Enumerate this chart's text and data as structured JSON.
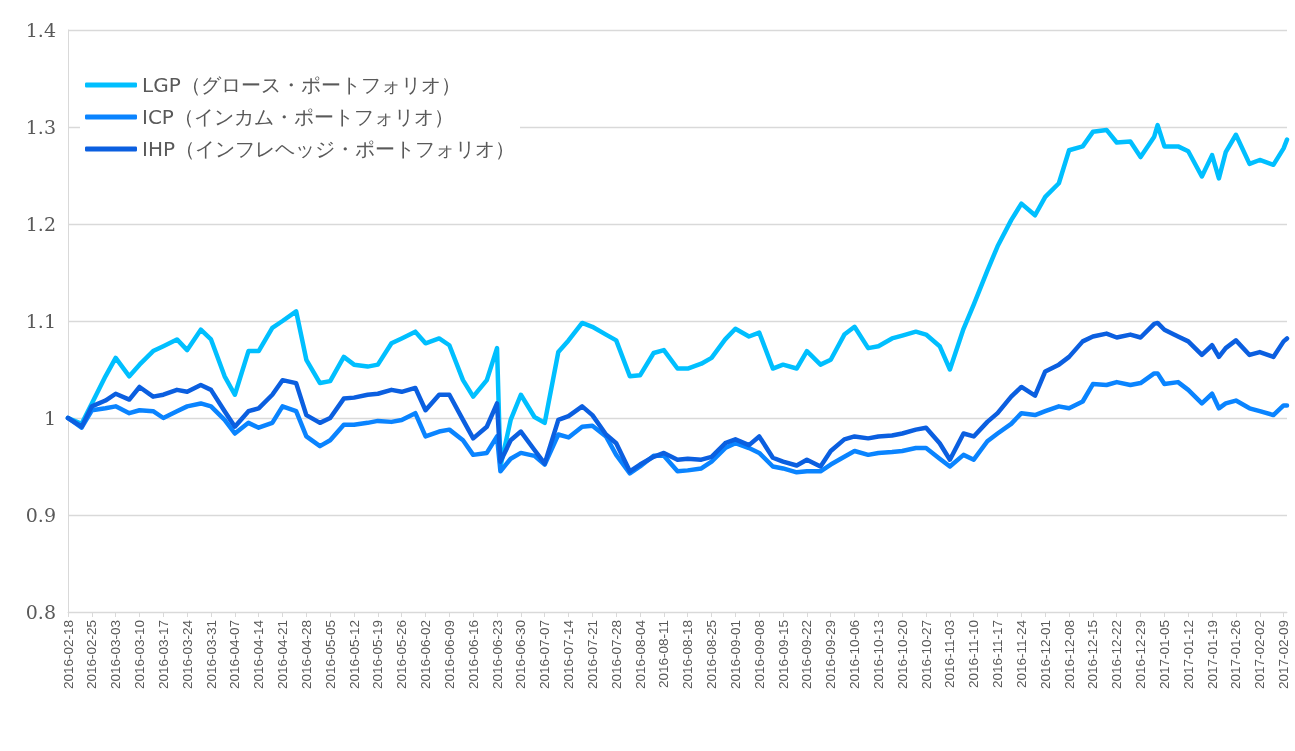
{
  "chart_data": {
    "type": "line",
    "x": [
      "2016-02-18",
      "2016-02-22",
      "2016-02-25",
      "2016-02-29",
      "2016-03-03",
      "2016-03-07",
      "2016-03-10",
      "2016-03-14",
      "2016-03-17",
      "2016-03-21",
      "2016-03-24",
      "2016-03-28",
      "2016-03-31",
      "2016-04-04",
      "2016-04-07",
      "2016-04-11",
      "2016-04-14",
      "2016-04-18",
      "2016-04-21",
      "2016-04-25",
      "2016-04-28",
      "2016-05-02",
      "2016-05-05",
      "2016-05-09",
      "2016-05-12",
      "2016-05-16",
      "2016-05-19",
      "2016-05-23",
      "2016-05-26",
      "2016-05-30",
      "2016-06-02",
      "2016-06-06",
      "2016-06-09",
      "2016-06-13",
      "2016-06-16",
      "2016-06-20",
      "2016-06-23",
      "2016-06-24",
      "2016-06-27",
      "2016-06-30",
      "2016-07-04",
      "2016-07-07",
      "2016-07-11",
      "2016-07-14",
      "2016-07-18",
      "2016-07-21",
      "2016-07-25",
      "2016-07-28",
      "2016-08-01",
      "2016-08-04",
      "2016-08-08",
      "2016-08-11",
      "2016-08-15",
      "2016-08-18",
      "2016-08-22",
      "2016-08-25",
      "2016-08-29",
      "2016-09-01",
      "2016-09-05",
      "2016-09-08",
      "2016-09-12",
      "2016-09-15",
      "2016-09-19",
      "2016-09-22",
      "2016-09-26",
      "2016-09-29",
      "2016-10-03",
      "2016-10-06",
      "2016-10-10",
      "2016-10-13",
      "2016-10-17",
      "2016-10-20",
      "2016-10-24",
      "2016-10-27",
      "2016-10-31",
      "2016-11-03",
      "2016-11-07",
      "2016-11-10",
      "2016-11-14",
      "2016-11-17",
      "2016-11-21",
      "2016-11-24",
      "2016-11-28",
      "2016-12-01",
      "2016-12-05",
      "2016-12-08",
      "2016-12-12",
      "2016-12-15",
      "2016-12-19",
      "2016-12-22",
      "2016-12-26",
      "2016-12-29",
      "2017-01-02",
      "2017-01-03",
      "2017-01-05",
      "2017-01-09",
      "2017-01-12",
      "2017-01-16",
      "2017-01-19",
      "2017-01-21",
      "2017-01-23",
      "2017-01-26",
      "2017-01-30",
      "2017-02-02",
      "2017-02-06",
      "2017-02-09",
      "2017-02-10"
    ],
    "series": [
      {
        "name": "LGP（グロース・ポートフォリオ）",
        "color": "#00bfff",
        "values": [
          1.0,
          0.994,
          1.015,
          1.043,
          1.062,
          1.043,
          1.055,
          1.069,
          1.074,
          1.081,
          1.07,
          1.091,
          1.081,
          1.043,
          1.024,
          1.069,
          1.069,
          1.093,
          1.1,
          1.11,
          1.06,
          1.036,
          1.038,
          1.063,
          1.055,
          1.053,
          1.055,
          1.077,
          1.082,
          1.089,
          1.077,
          1.082,
          1.075,
          1.039,
          1.022,
          1.039,
          1.072,
          0.95,
          0.998,
          1.024,
          1.001,
          0.995,
          1.068,
          1.08,
          1.098,
          1.094,
          1.086,
          1.08,
          1.043,
          1.044,
          1.067,
          1.07,
          1.051,
          1.051,
          1.056,
          1.062,
          1.081,
          1.092,
          1.084,
          1.088,
          1.051,
          1.055,
          1.051,
          1.069,
          1.055,
          1.06,
          1.086,
          1.094,
          1.072,
          1.074,
          1.082,
          1.085,
          1.089,
          1.086,
          1.074,
          1.05,
          1.092,
          1.117,
          1.152,
          1.177,
          1.204,
          1.221,
          1.209,
          1.228,
          1.242,
          1.276,
          1.28,
          1.295,
          1.297,
          1.284,
          1.285,
          1.269,
          1.29,
          1.302,
          1.28,
          1.28,
          1.275,
          1.249,
          1.271,
          1.247,
          1.274,
          1.292,
          1.262,
          1.266,
          1.261,
          1.278,
          1.287
        ]
      },
      {
        "name": "ICP（インカム・ポートフォリオ）",
        "color": "#0a84ff",
        "values": [
          1.0,
          0.99,
          1.008,
          1.01,
          1.012,
          1.005,
          1.008,
          1.007,
          1.0,
          1.007,
          1.012,
          1.015,
          1.012,
          0.998,
          0.984,
          0.995,
          0.99,
          0.995,
          1.012,
          1.007,
          0.981,
          0.971,
          0.977,
          0.993,
          0.993,
          0.995,
          0.997,
          0.996,
          0.998,
          1.005,
          0.981,
          0.986,
          0.988,
          0.977,
          0.962,
          0.964,
          0.981,
          0.945,
          0.958,
          0.964,
          0.961,
          0.952,
          0.983,
          0.98,
          0.991,
          0.992,
          0.981,
          0.962,
          0.943,
          0.95,
          0.961,
          0.961,
          0.945,
          0.946,
          0.948,
          0.955,
          0.969,
          0.974,
          0.969,
          0.964,
          0.95,
          0.948,
          0.944,
          0.945,
          0.945,
          0.952,
          0.96,
          0.966,
          0.962,
          0.964,
          0.965,
          0.966,
          0.969,
          0.969,
          0.958,
          0.95,
          0.962,
          0.957,
          0.976,
          0.984,
          0.994,
          1.005,
          1.003,
          1.007,
          1.012,
          1.01,
          1.017,
          1.035,
          1.034,
          1.037,
          1.034,
          1.036,
          1.046,
          1.046,
          1.035,
          1.037,
          1.029,
          1.015,
          1.025,
          1.01,
          1.015,
          1.018,
          1.01,
          1.007,
          1.003,
          1.013,
          1.013
        ]
      },
      {
        "name": "IHP（インフレヘッジ・ポートフォリオ）",
        "color": "#0b5fe0",
        "values": [
          1.0,
          0.991,
          1.012,
          1.018,
          1.025,
          1.019,
          1.032,
          1.022,
          1.024,
          1.029,
          1.027,
          1.034,
          1.029,
          1.007,
          0.991,
          1.007,
          1.01,
          1.024,
          1.039,
          1.036,
          1.003,
          0.995,
          1.0,
          1.02,
          1.021,
          1.024,
          1.025,
          1.029,
          1.027,
          1.031,
          1.008,
          1.024,
          1.024,
          0.998,
          0.979,
          0.991,
          1.015,
          0.955,
          0.977,
          0.986,
          0.967,
          0.953,
          0.998,
          1.002,
          1.012,
          1.003,
          0.983,
          0.974,
          0.945,
          0.952,
          0.96,
          0.964,
          0.957,
          0.958,
          0.957,
          0.96,
          0.974,
          0.978,
          0.972,
          0.981,
          0.959,
          0.955,
          0.951,
          0.957,
          0.95,
          0.966,
          0.978,
          0.981,
          0.979,
          0.981,
          0.982,
          0.984,
          0.988,
          0.99,
          0.974,
          0.957,
          0.984,
          0.981,
          0.996,
          1.005,
          1.022,
          1.032,
          1.023,
          1.048,
          1.055,
          1.063,
          1.079,
          1.084,
          1.087,
          1.083,
          1.086,
          1.083,
          1.097,
          1.098,
          1.091,
          1.084,
          1.079,
          1.065,
          1.075,
          1.063,
          1.072,
          1.08,
          1.065,
          1.068,
          1.063,
          1.079,
          1.082
        ]
      }
    ],
    "xlim": [
      "2016-02-18",
      "2017-02-10"
    ],
    "xticks": [
      "2016-02-18",
      "2016-02-25",
      "2016-03-03",
      "2016-03-10",
      "2016-03-17",
      "2016-03-24",
      "2016-03-31",
      "2016-04-07",
      "2016-04-14",
      "2016-04-21",
      "2016-04-28",
      "2016-05-05",
      "2016-05-12",
      "2016-05-19",
      "2016-05-26",
      "2016-06-02",
      "2016-06-09",
      "2016-06-16",
      "2016-06-23",
      "2016-06-30",
      "2016-07-07",
      "2016-07-14",
      "2016-07-21",
      "2016-07-28",
      "2016-08-04",
      "2016-08-11",
      "2016-08-18",
      "2016-08-25",
      "2016-09-01",
      "2016-09-08",
      "2016-09-15",
      "2016-09-22",
      "2016-09-29",
      "2016-10-06",
      "2016-10-13",
      "2016-10-20",
      "2016-10-27",
      "2016-11-03",
      "2016-11-10",
      "2016-11-17",
      "2016-11-24",
      "2016-12-01",
      "2016-12-08",
      "2016-12-15",
      "2016-12-22",
      "2016-12-29",
      "2017-01-05",
      "2017-01-12",
      "2017-01-19",
      "2017-01-26",
      "2017-02-02",
      "2017-02-09"
    ],
    "ylim": [
      0.8,
      1.4
    ],
    "yticks": [
      0.8,
      0.9,
      1,
      1.1,
      1.2,
      1.3,
      1.4
    ],
    "grid": "y",
    "legend": "top left",
    "marker": "none",
    "line_style": "solid"
  }
}
